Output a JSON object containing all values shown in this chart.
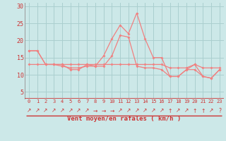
{
  "xlabel": "Vent moyen/en rafales ( km/h )",
  "x": [
    0,
    1,
    2,
    3,
    4,
    5,
    6,
    7,
    8,
    9,
    10,
    11,
    12,
    13,
    14,
    15,
    16,
    17,
    18,
    19,
    20,
    21,
    22,
    23
  ],
  "line_peak": [
    17,
    17,
    13,
    13,
    13,
    11.5,
    11.5,
    13,
    12.5,
    15.5,
    20.5,
    24.5,
    22,
    28,
    20.5,
    15,
    15,
    9.5,
    9.5,
    11.5,
    13,
    9.5,
    9,
    11.5
  ],
  "line_flat": [
    13,
    13,
    13,
    13,
    13,
    13,
    13,
    13,
    13,
    13,
    13,
    13,
    13,
    13,
    13,
    13,
    13,
    12,
    12,
    12,
    13,
    12,
    12,
    12
  ],
  "line_rise": [
    17,
    17,
    13,
    13,
    12.5,
    12,
    12,
    12.5,
    12.5,
    12.5,
    15.5,
    21.5,
    21,
    12.5,
    12,
    12,
    11.5,
    9.5,
    9.5,
    11.5,
    11.5,
    9.5,
    9,
    11.5
  ],
  "line_color": "#f08080",
  "bg_color": "#cce8e8",
  "grid_color": "#aacfcf",
  "axis_color": "#cc3333",
  "ylim": [
    3,
    31
  ],
  "yticks": [
    5,
    10,
    15,
    20,
    25,
    30
  ],
  "xticks": [
    0,
    1,
    2,
    3,
    4,
    5,
    6,
    7,
    8,
    9,
    10,
    11,
    12,
    13,
    14,
    15,
    16,
    17,
    18,
    19,
    20,
    21,
    22,
    23
  ],
  "arrows": [
    "↗",
    "↗",
    "↗",
    "↗",
    "↗",
    "↗",
    "↗",
    "↗",
    "→",
    "→",
    "→",
    "↗",
    "↗",
    "↗",
    "↗",
    "↗",
    "↗",
    "↑",
    "↗",
    "↗",
    "↑",
    "↑",
    "↗",
    "?"
  ]
}
